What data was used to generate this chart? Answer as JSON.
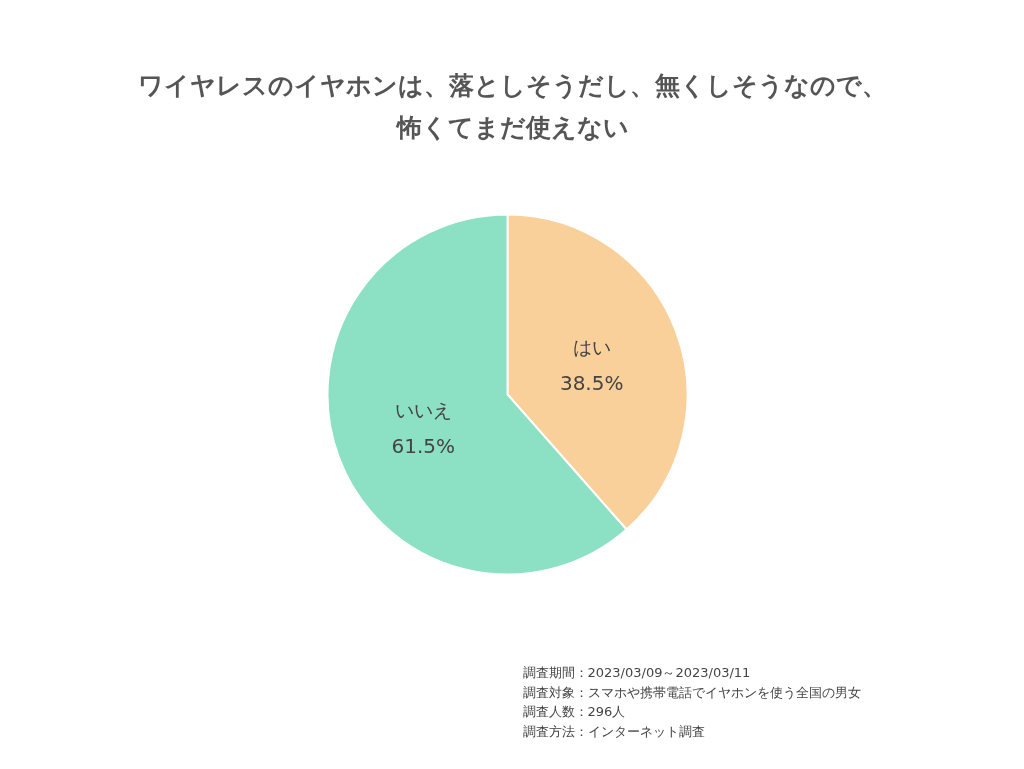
{
  "chart_data": {
    "type": "pie",
    "title": "ワイヤレスのイヤホンは、落としそうだし、無くしそうなので、怖くてまだ使えない",
    "categories": [
      "はい",
      "いいえ"
    ],
    "values": [
      38.5,
      61.5
    ],
    "colors": [
      "#f9d09a",
      "#8ce0c4"
    ],
    "value_labels": [
      "38.5%",
      "61.5%"
    ],
    "legend": false,
    "annotations": [
      "調査期間：2023/03/09～2023/03/11",
      "調査対象：スマホや携帯電話でイヤホンを使う全国の男女",
      "調査人数：296人",
      "調査方法：インターネット調査"
    ]
  }
}
